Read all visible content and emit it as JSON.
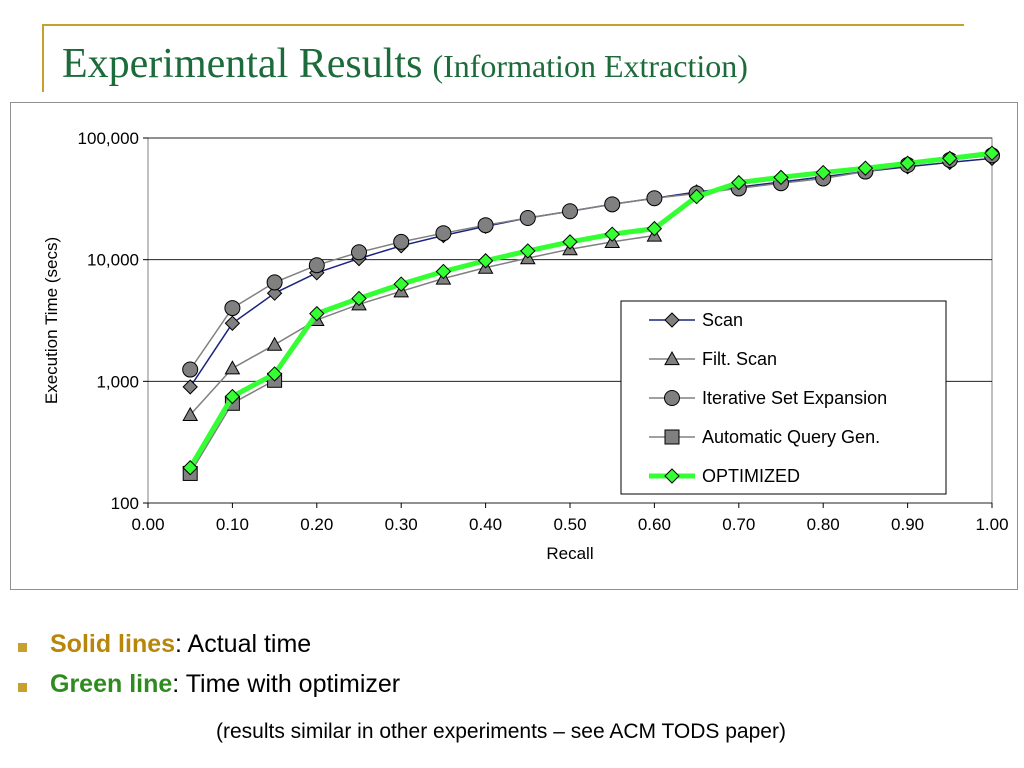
{
  "slide": {
    "title_main": "Experimental Results",
    "title_sub": "(Information Extraction)",
    "accent_gold": "#c8a030",
    "title_color": "#1c6b3a"
  },
  "bullets": [
    {
      "emph": "Solid lines",
      "rest": ": Actual time",
      "emph_color": "#b8860b"
    },
    {
      "emph": "Green line",
      "rest": ": Time with optimizer",
      "emph_color": "#2e8b1e"
    }
  ],
  "note": "(results similar in other experiments – see ACM TODS paper)",
  "chart_data": {
    "type": "line",
    "xlabel": "Recall",
    "ylabel": "Execution Time (secs)",
    "xlim": [
      0.0,
      1.0
    ],
    "ylim": [
      100,
      100000
    ],
    "yscale": "log",
    "x_ticks": [
      "0.00",
      "0.10",
      "0.20",
      "0.30",
      "0.40",
      "0.50",
      "0.60",
      "0.70",
      "0.80",
      "0.90",
      "1.00"
    ],
    "y_ticks": [
      {
        "value": 100,
        "label": "100"
      },
      {
        "value": 1000,
        "label": "1,000"
      },
      {
        "value": 10000,
        "label": "10,000"
      },
      {
        "value": 100000,
        "label": "100,000"
      }
    ],
    "legend_position": "center-right",
    "series": [
      {
        "name": "Scan",
        "marker": "diamond",
        "line_color": "#1a237e",
        "marker_fill": "#808080",
        "line_width": 1.5,
        "x": [
          0.05,
          0.1,
          0.15,
          0.2,
          0.25,
          0.3,
          0.35,
          0.4,
          0.45,
          0.5,
          0.55,
          0.6,
          0.65,
          0.7,
          0.75,
          0.8,
          0.85,
          0.9,
          0.95,
          1.0
        ],
        "y": [
          900,
          3000,
          5300,
          7800,
          10200,
          13000,
          15800,
          18800,
          22000,
          25000,
          28500,
          32000,
          36000,
          39500,
          43500,
          48000,
          53000,
          58000,
          63000,
          68000
        ]
      },
      {
        "name": "Filt. Scan",
        "marker": "triangle",
        "line_color": "#808080",
        "marker_fill": "#808080",
        "line_width": 1.5,
        "x": [
          0.05,
          0.1,
          0.15,
          0.2,
          0.25,
          0.3,
          0.35,
          0.4,
          0.45,
          0.5,
          0.55,
          0.6
        ],
        "y": [
          530,
          1280,
          2000,
          3200,
          4300,
          5500,
          7000,
          8600,
          10300,
          12200,
          14000,
          15800
        ]
      },
      {
        "name": "Iterative Set Expansion",
        "marker": "circle",
        "line_color": "#808080",
        "marker_fill": "#808080",
        "line_width": 1.5,
        "x": [
          0.05,
          0.1,
          0.15,
          0.2,
          0.25,
          0.3,
          0.35,
          0.4,
          0.45,
          0.5,
          0.55,
          0.6,
          0.65,
          0.7,
          0.75,
          0.8,
          0.85,
          0.9,
          0.95,
          1.0
        ],
        "y": [
          1250,
          4000,
          6500,
          9000,
          11500,
          14000,
          16500,
          19200,
          22000,
          25000,
          28500,
          32000,
          35000,
          38500,
          42500,
          46500,
          53000,
          60000,
          66000,
          72000
        ]
      },
      {
        "name": "Automatic Query Gen.",
        "marker": "square",
        "line_color": "#808080",
        "marker_fill": "#808080",
        "line_width": 1.5,
        "x": [
          0.05,
          0.1,
          0.15
        ],
        "y": [
          175,
          660,
          1020
        ]
      },
      {
        "name": "OPTIMIZED",
        "marker": "diamond",
        "line_color": "#33ff33",
        "marker_fill": "#33ff33",
        "line_width": 5,
        "x": [
          0.05,
          0.1,
          0.15,
          0.2,
          0.25,
          0.3,
          0.35,
          0.4,
          0.45,
          0.5,
          0.55,
          0.6,
          0.65,
          0.7,
          0.75,
          0.8,
          0.85,
          0.9,
          0.95,
          1.0
        ],
        "y": [
          195,
          750,
          1150,
          3600,
          4800,
          6300,
          8000,
          9800,
          11800,
          14000,
          16200,
          18000,
          33000,
          43000,
          47500,
          52000,
          56500,
          62000,
          68000,
          75000
        ]
      }
    ]
  }
}
